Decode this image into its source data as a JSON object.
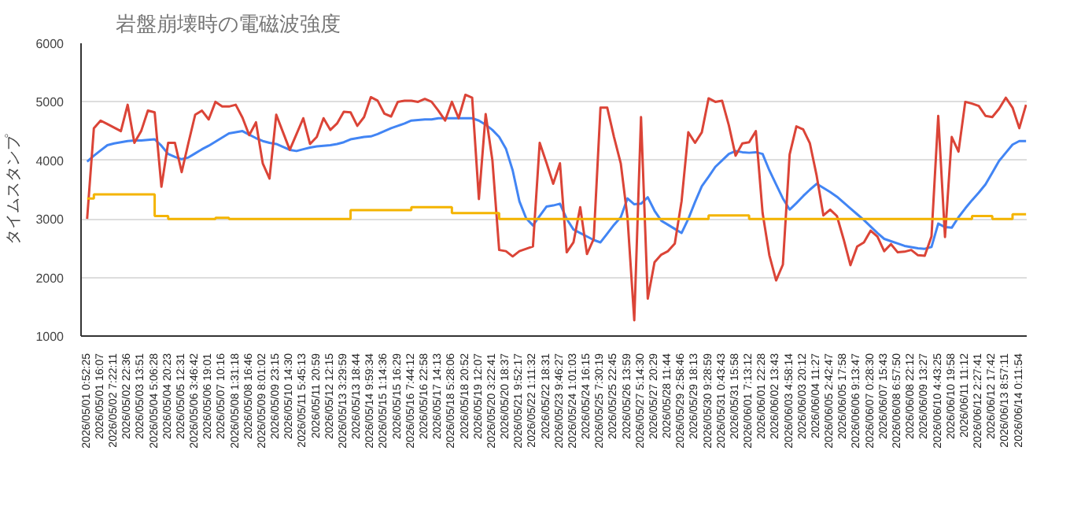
{
  "chart_data": {
    "type": "line",
    "title": "岩盤崩壊時の電磁波強度",
    "ylabel": "タイムスタンプ",
    "ylim": [
      1000,
      6000
    ],
    "yticks": [
      1000,
      2000,
      3000,
      4000,
      5000,
      6000
    ],
    "grid": "y",
    "categories": [
      "2026/05/01 0:52:25",
      null,
      "2026/05/01 16:07",
      null,
      "2026/05/02 7:22:11",
      null,
      "2026/05/02 22:36",
      null,
      "2026/05/03 13:51",
      null,
      "2026/05/04 5:06:28",
      null,
      "2026/05/04 20:23",
      null,
      "2026/05/05 12:31",
      null,
      "2026/05/06 3:46:42",
      null,
      "2026/05/06 19:01",
      null,
      "2026/05/07 10:16",
      null,
      "2026/05/08 1:31:18",
      null,
      "2026/05/08 16:46",
      null,
      "2026/05/09 8:01:02",
      null,
      "2026/05/09 23:15",
      null,
      "2026/05/10 14:30",
      null,
      "2026/05/11 5:45:13",
      null,
      "2026/05/11 20:59",
      null,
      "2026/05/12 12:15",
      null,
      "2026/05/13 3:29:59",
      null,
      "2026/05/13 18:44",
      null,
      "2026/05/14 9:59:34",
      null,
      "2026/05/15 1:14:36",
      null,
      "2026/05/15 16:29",
      null,
      "2026/05/16 7:44:12",
      null,
      "2026/05/16 22:58",
      null,
      "2026/05/17 14:13",
      null,
      "2026/05/18 5:28:06",
      null,
      "2026/05/18 20:52",
      null,
      "2026/05/19 12:07",
      null,
      "2026/05/20 3:22:41",
      null,
      "2026/05/20 18:37",
      null,
      "2026/05/21 9:52:17",
      null,
      "2026/05/22 1:11:32",
      null,
      "2026/05/22 18:31",
      null,
      "2026/05/23 9:46:27",
      null,
      "2026/05/24 1:01:03",
      null,
      "2026/05/24 16:15",
      null,
      "2026/05/25 7:30:19",
      null,
      "2026/05/25 22:45",
      null,
      "2026/05/26 13:59",
      null,
      "2026/05/27 5:14:30",
      null,
      "2026/05/27 20:29",
      null,
      "2026/05/28 11:44",
      null,
      "2026/05/29 2:58:46",
      null,
      "2026/05/29 18:13",
      null,
      "2026/05/30 9:28:59",
      null,
      "2026/05/31 0:43:43",
      null,
      "2026/05/31 15:58",
      null,
      "2026/06/01 7:13:12",
      null,
      "2026/06/01 22:28",
      null,
      "2026/06/02 13:43",
      null,
      "2026/06/03 4:58:14",
      null,
      "2026/06/03 20:12",
      null,
      "2026/06/04 11:27",
      null,
      "2026/06/05 2:42:47",
      null,
      "2026/06/05 17:58",
      null,
      "2026/06/06 9:13:47",
      null,
      "2026/06/07 0:28:30",
      null,
      "2026/06/07 15:43",
      null,
      "2026/06/08 6:57:50",
      null,
      "2026/06/08 22:12",
      null,
      "2026/06/09 13:27",
      null,
      "2026/06/10 4:43:25",
      null,
      "2026/06/10 19:58",
      null,
      "2026/06/11 11:12",
      null,
      "2026/06/12 2:27:41",
      null,
      "2026/06/12 17:42",
      null,
      "2026/06/13 8:57:11",
      null,
      "2026/06/14 0:11:54",
      null
    ],
    "series": [
      {
        "color": "#4285f4",
        "values": [
          3980,
          4080,
          4170,
          4260,
          4290,
          4310,
          4330,
          4340,
          4340,
          4350,
          4360,
          4250,
          4110,
          4060,
          4020,
          4050,
          4120,
          4190,
          4250,
          4320,
          4390,
          4460,
          4480,
          4500,
          4440,
          4380,
          4330,
          4300,
          4280,
          4230,
          4180,
          4160,
          4190,
          4220,
          4240,
          4250,
          4260,
          4280,
          4310,
          4360,
          4380,
          4400,
          4410,
          4450,
          4500,
          4550,
          4590,
          4630,
          4680,
          4690,
          4700,
          4700,
          4720,
          4720,
          4720,
          4720,
          4720,
          4720,
          4680,
          4610,
          4520,
          4400,
          4200,
          3830,
          3300,
          3010,
          2890,
          3050,
          3210,
          3230,
          3260,
          3000,
          2820,
          2760,
          2700,
          2640,
          2600,
          2750,
          2900,
          3030,
          3350,
          3250,
          3260,
          3370,
          3140,
          2970,
          2900,
          2830,
          2760,
          3000,
          3290,
          3560,
          3720,
          3890,
          4000,
          4110,
          4160,
          4140,
          4130,
          4140,
          4110,
          3830,
          3590,
          3350,
          3160,
          3270,
          3390,
          3500,
          3600,
          3530,
          3460,
          3380,
          3280,
          3180,
          3080,
          2980,
          2870,
          2760,
          2660,
          2620,
          2580,
          2540,
          2520,
          2500,
          2490,
          2520,
          2920,
          2860,
          2850,
          3030,
          3180,
          3320,
          3450,
          3590,
          3790,
          3990,
          4130,
          4270,
          4330,
          4330
        ]
      },
      {
        "color": "#db4437",
        "values": [
          3000,
          4550,
          4680,
          4620,
          4560,
          4500,
          4950,
          4300,
          4500,
          4850,
          4820,
          3550,
          4300,
          4300,
          3800,
          4300,
          4780,
          4850,
          4700,
          5000,
          4920,
          4920,
          4950,
          4730,
          4430,
          4650,
          3950,
          3690,
          4780,
          4480,
          4180,
          4450,
          4720,
          4280,
          4400,
          4720,
          4520,
          4630,
          4830,
          4820,
          4590,
          4740,
          5080,
          5020,
          4800,
          4750,
          5000,
          5020,
          5020,
          5000,
          5050,
          5000,
          4850,
          4680,
          5000,
          4720,
          5120,
          5070,
          3340,
          4790,
          4000,
          2470,
          2450,
          2360,
          2450,
          2490,
          2530,
          4300,
          3960,
          3600,
          3950,
          2430,
          2600,
          3200,
          2400,
          2660,
          4900,
          4900,
          4400,
          3950,
          3020,
          1270,
          4740,
          1640,
          2260,
          2390,
          2450,
          2580,
          3300,
          4480,
          4300,
          4480,
          5060,
          5000,
          5020,
          4600,
          4080,
          4290,
          4310,
          4500,
          3100,
          2380,
          1950,
          2220,
          4100,
          4580,
          4530,
          4290,
          3740,
          3060,
          3160,
          3050,
          2650,
          2210,
          2530,
          2600,
          2800,
          2700,
          2450,
          2570,
          2430,
          2440,
          2470,
          2380,
          2370,
          2700,
          4760,
          2690,
          4400,
          4150,
          5000,
          4970,
          4930,
          4760,
          4740,
          4880,
          5070,
          4900,
          4550,
          4950
        ]
      },
      {
        "type": "step",
        "color": "#f4b400",
        "values": [
          3350,
          3420,
          3420,
          3420,
          3420,
          3420,
          3420,
          3420,
          3420,
          3420,
          3050,
          3050,
          3000,
          3000,
          3000,
          3000,
          3000,
          3000,
          3000,
          3020,
          3020,
          3000,
          3000,
          3000,
          3000,
          3000,
          3000,
          3000,
          3000,
          3000,
          3000,
          3000,
          3000,
          3000,
          3000,
          3000,
          3000,
          3000,
          3000,
          3150,
          3150,
          3150,
          3150,
          3150,
          3150,
          3150,
          3150,
          3150,
          3200,
          3200,
          3200,
          3200,
          3200,
          3200,
          3100,
          3100,
          3100,
          3100,
          3100,
          3100,
          3100,
          3000,
          3000,
          3000,
          3000,
          3000,
          3000,
          3000,
          3000,
          3000,
          3000,
          3000,
          3000,
          3000,
          3000,
          3000,
          3000,
          3000,
          3000,
          3000,
          3000,
          3000,
          3000,
          3000,
          3000,
          3000,
          3000,
          3000,
          3000,
          3000,
          3000,
          3000,
          3060,
          3060,
          3060,
          3060,
          3060,
          3060,
          3000,
          3000,
          3000,
          3000,
          3000,
          3000,
          3000,
          3000,
          3000,
          3000,
          3000,
          3000,
          3000,
          3000,
          3000,
          3000,
          3000,
          3000,
          3000,
          3000,
          3000,
          3000,
          3000,
          3000,
          3000,
          3000,
          3000,
          3000,
          3000,
          3000,
          3000,
          3000,
          3000,
          3050,
          3050,
          3050,
          3000,
          3000,
          3000,
          3080,
          3080,
          3080
        ]
      }
    ]
  }
}
